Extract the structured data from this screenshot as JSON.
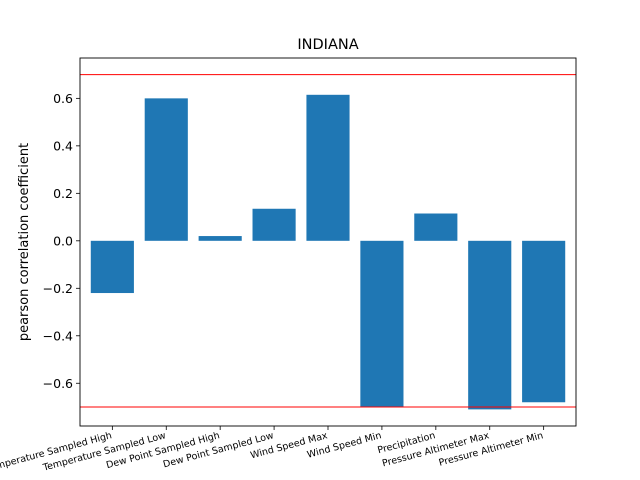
{
  "chart_data": {
    "type": "bar",
    "title": "INDIANA",
    "xlabel": "",
    "ylabel": "pearson correlation coefficient",
    "categories": [
      "Temperature Sampled High",
      "Temperature Sampled Low",
      "Dew Point Sampled High",
      "Dew Point Sampled Low",
      "Wind Speed Max",
      "Wind Speed Min",
      "Precipitation",
      "Pressure Altimeter Max",
      "Pressure Altimeter Min"
    ],
    "values": [
      -0.22,
      0.6,
      0.02,
      0.135,
      0.615,
      -0.7,
      0.115,
      -0.71,
      -0.68
    ],
    "ylim": [
      -0.78,
      0.77
    ],
    "yticks": [
      -0.6,
      -0.4,
      -0.2,
      0.0,
      0.2,
      0.4,
      0.6
    ],
    "ytick_labels": [
      "−0.6",
      "−0.4",
      "−0.2",
      "0.0",
      "0.2",
      "0.4",
      "0.6"
    ],
    "reference_lines": [
      0.7,
      -0.7
    ],
    "bar_color": "#1f77b4",
    "reference_line_color": "#ff0000",
    "grid": false,
    "legend": "none"
  }
}
